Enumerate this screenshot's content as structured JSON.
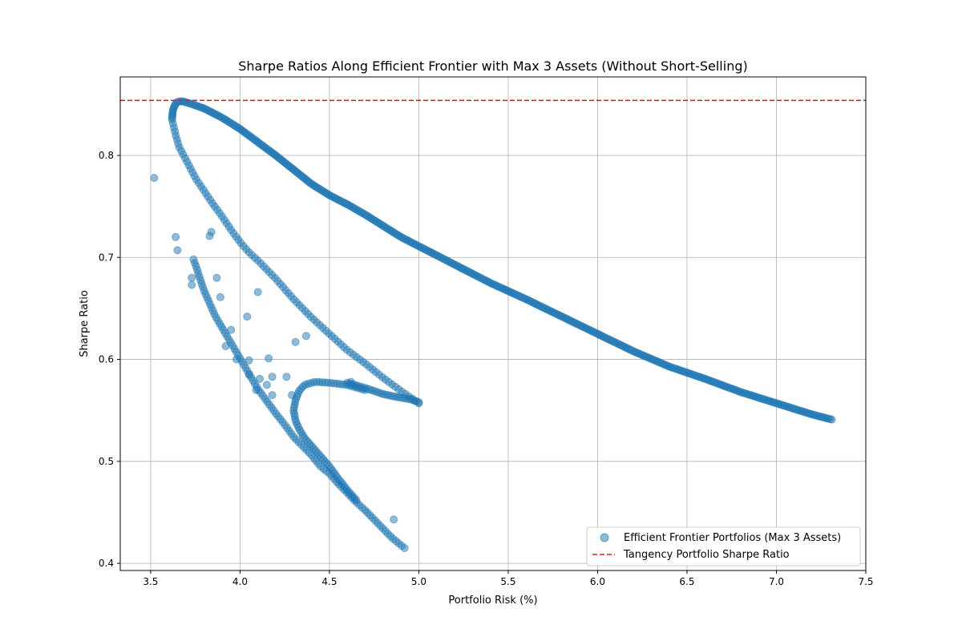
{
  "chart_data": {
    "type": "scatter",
    "title": "Sharpe Ratios Along Efficient Frontier with Max 3 Assets (Without Short-Selling)",
    "xlabel": "Portfolio Risk (%)",
    "ylabel": "Sharpe Ratio",
    "xlim": [
      3.33,
      7.5
    ],
    "ylim": [
      0.393,
      0.877
    ],
    "xticks": [
      "3.5",
      "4.0",
      "4.5",
      "5.0",
      "5.5",
      "6.0",
      "6.5",
      "7.0",
      "7.5"
    ],
    "yticks": [
      "0.4",
      "0.5",
      "0.6",
      "0.7",
      "0.8"
    ],
    "grid": true,
    "legend_position": "lower-right",
    "colors": {
      "scatter": "#1f77b4",
      "tangency": "#d62728"
    },
    "series": [
      {
        "name": "Efficient Frontier Portfolios (Max 3 Assets)",
        "kind": "scatter",
        "segments": [
          {
            "points": [
              [
                3.62,
                0.837
              ],
              [
                3.625,
                0.845
              ],
              [
                3.635,
                0.849
              ],
              [
                3.645,
                0.852
              ],
              [
                3.66,
                0.853
              ],
              [
                3.68,
                0.853
              ],
              [
                3.72,
                0.851
              ],
              [
                3.8,
                0.846
              ],
              [
                3.9,
                0.837
              ],
              [
                4.0,
                0.826
              ],
              [
                4.1,
                0.813
              ],
              [
                4.2,
                0.8
              ],
              [
                4.3,
                0.786
              ],
              [
                4.4,
                0.772
              ],
              [
                4.5,
                0.761
              ],
              [
                4.6,
                0.752
              ],
              [
                4.7,
                0.742
              ],
              [
                4.8,
                0.731
              ],
              [
                4.9,
                0.72
              ],
              [
                5.0,
                0.711
              ],
              [
                5.2,
                0.693
              ],
              [
                5.4,
                0.675
              ],
              [
                5.6,
                0.659
              ],
              [
                5.8,
                0.642
              ],
              [
                6.0,
                0.625
              ],
              [
                6.2,
                0.608
              ],
              [
                6.4,
                0.593
              ],
              [
                6.6,
                0.581
              ],
              [
                6.8,
                0.568
              ],
              [
                7.0,
                0.557
              ],
              [
                7.2,
                0.546
              ],
              [
                7.31,
                0.541
              ]
            ],
            "count": 420
          },
          {
            "points": [
              [
                3.62,
                0.835
              ],
              [
                3.64,
                0.82
              ],
              [
                3.66,
                0.808
              ],
              [
                3.7,
                0.795
              ],
              [
                3.75,
                0.778
              ],
              [
                3.8,
                0.765
              ],
              [
                3.85,
                0.752
              ],
              [
                3.9,
                0.74
              ],
              [
                3.95,
                0.727
              ],
              [
                4.0,
                0.715
              ],
              [
                4.05,
                0.705
              ],
              [
                4.1,
                0.697
              ],
              [
                4.2,
                0.679
              ],
              [
                4.3,
                0.659
              ],
              [
                4.4,
                0.641
              ],
              [
                4.5,
                0.625
              ],
              [
                4.6,
                0.609
              ],
              [
                4.7,
                0.596
              ],
              [
                4.8,
                0.582
              ],
              [
                4.9,
                0.569
              ],
              [
                5.0,
                0.557
              ]
            ],
            "count": 95
          },
          {
            "points": [
              [
                3.74,
                0.698
              ],
              [
                3.76,
                0.688
              ],
              [
                3.78,
                0.677
              ],
              [
                3.8,
                0.667
              ],
              [
                3.83,
                0.655
              ],
              [
                3.86,
                0.643
              ],
              [
                3.9,
                0.631
              ],
              [
                3.94,
                0.619
              ],
              [
                3.98,
                0.607
              ],
              [
                4.02,
                0.595
              ],
              [
                4.06,
                0.583
              ],
              [
                4.1,
                0.571
              ],
              [
                4.15,
                0.559
              ],
              [
                4.2,
                0.547
              ],
              [
                4.25,
                0.536
              ],
              [
                4.3,
                0.524
              ],
              [
                4.35,
                0.515
              ],
              [
                4.4,
                0.506
              ],
              [
                4.45,
                0.495
              ],
              [
                4.5,
                0.488
              ],
              [
                4.55,
                0.478
              ],
              [
                4.6,
                0.469
              ],
              [
                4.65,
                0.46
              ],
              [
                4.7,
                0.452
              ],
              [
                4.75,
                0.443
              ],
              [
                4.8,
                0.434
              ],
              [
                4.85,
                0.425
              ],
              [
                4.92,
                0.415
              ]
            ],
            "count": 100
          },
          {
            "points": [
              [
                4.7,
                0.57
              ],
              [
                4.6,
                0.575
              ],
              [
                4.5,
                0.577
              ],
              [
                4.42,
                0.578
              ],
              [
                4.36,
                0.575
              ],
              [
                4.33,
                0.569
              ],
              [
                4.31,
                0.56
              ],
              [
                4.3,
                0.55
              ],
              [
                4.31,
                0.54
              ],
              [
                4.33,
                0.532
              ],
              [
                4.36,
                0.523
              ],
              [
                4.4,
                0.515
              ],
              [
                4.45,
                0.505
              ],
              [
                4.5,
                0.495
              ],
              [
                4.55,
                0.483
              ],
              [
                4.6,
                0.472
              ],
              [
                4.65,
                0.462
              ]
            ],
            "count": 70
          },
          {
            "points": [
              [
                4.6,
                0.577
              ],
              [
                4.7,
                0.572
              ],
              [
                4.8,
                0.566
              ],
              [
                4.88,
                0.563
              ],
              [
                4.95,
                0.561
              ],
              [
                5.0,
                0.558
              ]
            ],
            "count": 30
          }
        ],
        "scattered_points": [
          [
            3.52,
            0.778
          ],
          [
            3.64,
            0.72
          ],
          [
            3.65,
            0.707
          ],
          [
            3.84,
            0.725
          ],
          [
            3.83,
            0.721
          ],
          [
            3.73,
            0.68
          ],
          [
            3.73,
            0.673
          ],
          [
            3.87,
            0.68
          ],
          [
            3.89,
            0.661
          ],
          [
            3.95,
            0.629
          ],
          [
            4.04,
            0.642
          ],
          [
            4.1,
            0.666
          ],
          [
            4.16,
            0.601
          ],
          [
            4.05,
            0.599
          ],
          [
            4.18,
            0.583
          ],
          [
            4.26,
            0.583
          ],
          [
            4.31,
            0.617
          ],
          [
            4.37,
            0.623
          ],
          [
            4.11,
            0.581
          ],
          [
            4.15,
            0.575
          ],
          [
            4.29,
            0.565
          ],
          [
            4.05,
            0.585
          ],
          [
            4.09,
            0.57
          ],
          [
            4.18,
            0.565
          ],
          [
            4.62,
            0.578
          ],
          [
            4.86,
            0.443
          ],
          [
            3.98,
            0.6
          ],
          [
            3.92,
            0.613
          ]
        ]
      },
      {
        "name": "Tangency Portfolio Sharpe Ratio",
        "kind": "hline",
        "y": 0.854
      }
    ]
  }
}
